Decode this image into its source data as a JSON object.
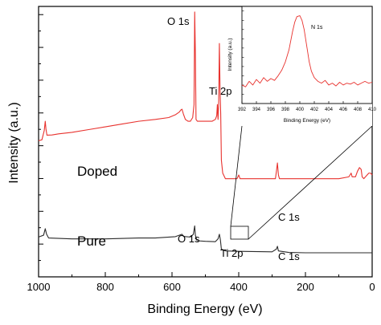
{
  "chart_data": [
    {
      "type": "line",
      "xlabel": "Binding Energy (eV)",
      "ylabel": "Intensity (a.u.)",
      "xlim": [
        1000,
        0
      ],
      "x_reversed": true,
      "x_ticks": [
        "1000",
        "800",
        "600",
        "400",
        "200",
        "0"
      ],
      "y_ticklabels": "none",
      "grid": false,
      "series": [
        {
          "name": "Doped",
          "color": "#e8322e",
          "points": [
            [
              1000,
              0.305
            ],
            [
              990,
              0.31
            ],
            [
              983,
              0.36
            ],
            [
              980,
              0.41
            ],
            [
              978,
              0.37
            ],
            [
              975,
              0.335
            ],
            [
              960,
              0.336
            ],
            [
              940,
              0.342
            ],
            [
              900,
              0.35
            ],
            [
              850,
              0.365
            ],
            [
              800,
              0.38
            ],
            [
              750,
              0.395
            ],
            [
              700,
              0.41
            ],
            [
              650,
              0.42
            ],
            [
              610,
              0.43
            ],
            [
              590,
              0.445
            ],
            [
              578,
              0.46
            ],
            [
              574,
              0.47
            ],
            [
              570,
              0.475
            ],
            [
              566,
              0.45
            ],
            [
              560,
              0.42
            ],
            [
              552,
              0.41
            ],
            [
              545,
              0.41
            ],
            [
              538,
              0.43
            ],
            [
              534,
              0.5
            ],
            [
              532,
              1.0
            ],
            [
              530,
              0.78
            ],
            [
              528,
              0.42
            ],
            [
              524,
              0.41
            ],
            [
              500,
              0.41
            ],
            [
              480,
              0.41
            ],
            [
              470,
              0.42
            ],
            [
              466,
              0.44
            ],
            [
              464,
              0.5
            ],
            [
              462,
              0.42
            ],
            [
              460,
              0.52
            ],
            [
              458,
              0.83
            ],
            [
              456,
              0.58
            ],
            [
              454,
              0.45
            ],
            [
              452,
              0.2
            ],
            [
              448,
              0.13
            ],
            [
              440,
              0.1
            ],
            [
              420,
              0.1
            ],
            [
              405,
              0.1
            ],
            [
              400,
              0.12
            ],
            [
              396,
              0.1
            ],
            [
              380,
              0.1
            ],
            [
              340,
              0.1
            ],
            [
              300,
              0.1
            ],
            [
              290,
              0.1
            ],
            [
              287,
              0.14
            ],
            [
              284,
              0.185
            ],
            [
              281,
              0.12
            ],
            [
              278,
              0.1
            ],
            [
              250,
              0.1
            ],
            [
              200,
              0.1
            ],
            [
              150,
              0.1
            ],
            [
              100,
              0.1
            ],
            [
              70,
              0.11
            ],
            [
              63,
              0.13
            ],
            [
              60,
              0.11
            ],
            [
              50,
              0.11
            ],
            [
              44,
              0.14
            ],
            [
              38,
              0.16
            ],
            [
              33,
              0.15
            ],
            [
              30,
              0.11
            ],
            [
              25,
              0.1
            ],
            [
              15,
              0.12
            ],
            [
              10,
              0.13
            ],
            [
              5,
              0.13
            ],
            [
              0,
              0.12
            ]
          ]
        },
        {
          "name": "Pure",
          "color": "#2b2b2b",
          "points": [
            [
              1000,
              -0.215
            ],
            [
              985,
              -0.205
            ],
            [
              980,
              -0.17
            ],
            [
              976,
              -0.2
            ],
            [
              970,
              -0.22
            ],
            [
              900,
              -0.225
            ],
            [
              800,
              -0.225
            ],
            [
              700,
              -0.22
            ],
            [
              650,
              -0.22
            ],
            [
              590,
              -0.213
            ],
            [
              570,
              -0.2
            ],
            [
              565,
              -0.212
            ],
            [
              545,
              -0.215
            ],
            [
              536,
              -0.2
            ],
            [
              532,
              -0.155
            ],
            [
              530,
              -0.205
            ],
            [
              525,
              -0.235
            ],
            [
              500,
              -0.238
            ],
            [
              470,
              -0.24
            ],
            [
              462,
              -0.225
            ],
            [
              458,
              -0.2
            ],
            [
              455,
              -0.23
            ],
            [
              452,
              -0.28
            ],
            [
              440,
              -0.29
            ],
            [
              400,
              -0.292
            ],
            [
              300,
              -0.295
            ],
            [
              287,
              -0.28
            ],
            [
              284,
              -0.265
            ],
            [
              281,
              -0.29
            ],
            [
              250,
              -0.298
            ],
            [
              200,
              -0.3
            ],
            [
              100,
              -0.3
            ],
            [
              50,
              -0.3
            ],
            [
              0,
              -0.3
            ]
          ]
        }
      ],
      "ylim": [
        -0.43,
        1.03
      ]
    },
    {
      "type": "line",
      "xlabel": "Binding Energy (eV)",
      "ylabel": "Intensity (a.u.)",
      "xlim": [
        392,
        410
      ],
      "x_reversed": false,
      "x_ticks": [
        "392",
        "394",
        "396",
        "398",
        "400",
        "402",
        "404",
        "406",
        "408",
        "410"
      ],
      "y_ticklabels": "none",
      "grid": false,
      "series": [
        {
          "name": "N 1s",
          "color": "#e8322e",
          "points": [
            [
              392,
              0.2
            ],
            [
              392.5,
              0.18
            ],
            [
              393,
              0.24
            ],
            [
              393.5,
              0.2
            ],
            [
              394,
              0.26
            ],
            [
              394.5,
              0.22
            ],
            [
              395,
              0.28
            ],
            [
              395.5,
              0.24
            ],
            [
              396,
              0.27
            ],
            [
              396.5,
              0.25
            ],
            [
              397,
              0.3
            ],
            [
              397.5,
              0.36
            ],
            [
              398,
              0.45
            ],
            [
              398.5,
              0.58
            ],
            [
              399,
              0.78
            ],
            [
              399.3,
              0.88
            ],
            [
              399.6,
              0.94
            ],
            [
              400,
              0.95
            ],
            [
              400.3,
              0.9
            ],
            [
              400.6,
              0.8
            ],
            [
              401,
              0.6
            ],
            [
              401.3,
              0.45
            ],
            [
              401.6,
              0.35
            ],
            [
              402,
              0.28
            ],
            [
              402.5,
              0.24
            ],
            [
              403,
              0.22
            ],
            [
              403.5,
              0.25
            ],
            [
              404,
              0.2
            ],
            [
              404.5,
              0.22
            ],
            [
              405,
              0.19
            ],
            [
              405.5,
              0.23
            ],
            [
              406,
              0.2
            ],
            [
              406.5,
              0.22
            ],
            [
              407,
              0.21
            ],
            [
              407.5,
              0.23
            ],
            [
              408,
              0.2
            ],
            [
              408.5,
              0.22
            ],
            [
              409,
              0.24
            ],
            [
              409.5,
              0.22
            ],
            [
              410,
              0.23
            ]
          ]
        }
      ],
      "ylim": [
        0,
        1.05
      ]
    }
  ],
  "main_annotations": {
    "o1s_doped": "O 1s",
    "ti2p_doped": "Ti 2p",
    "c1s_doped": "C 1s",
    "doped": "Doped",
    "pure": "Pure",
    "o1s_pure": "O 1s",
    "ti2p_pure": "Ti 2p",
    "c1s_pure": "C 1s"
  },
  "inset_annotations": {
    "n1s": "N 1s"
  }
}
